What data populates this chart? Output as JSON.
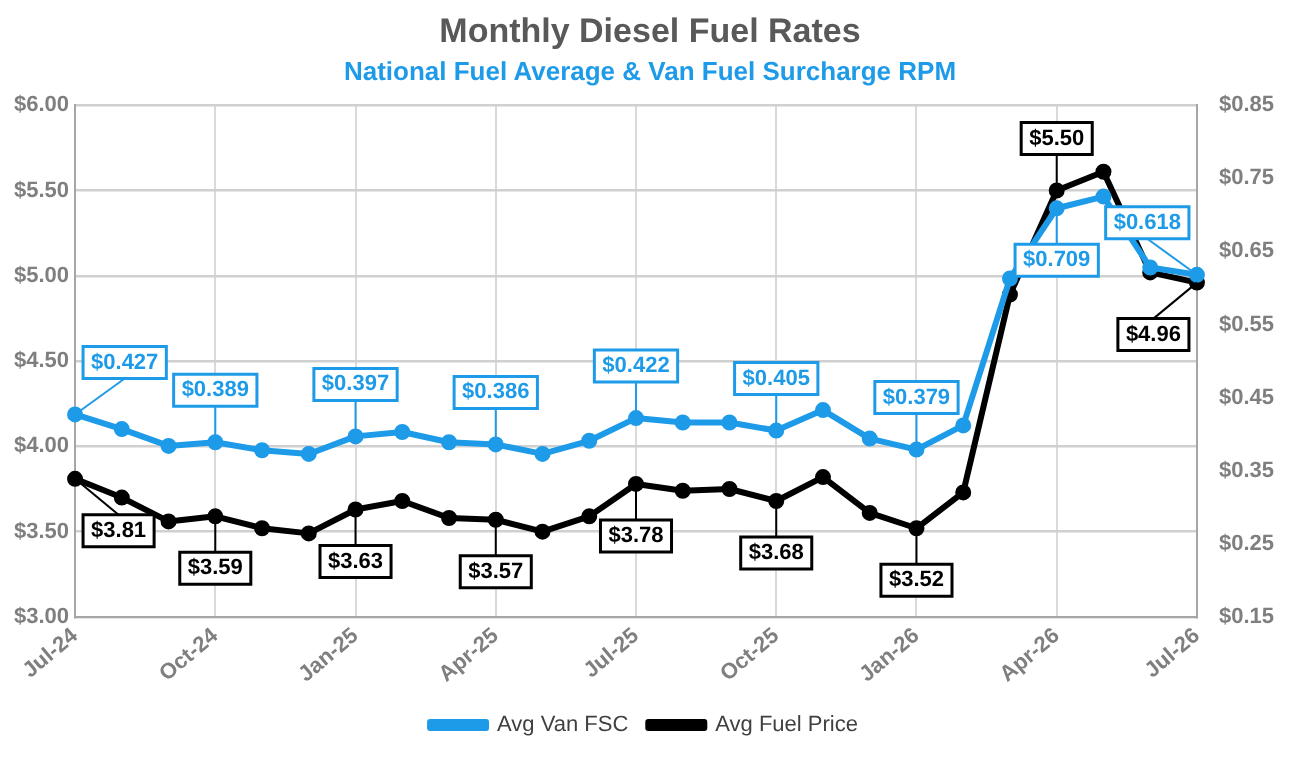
{
  "chart_data": {
    "type": "line",
    "title": "Monthly Diesel Fuel Rates",
    "subtitle": "National Fuel Average & Van Fuel Surcharge RPM",
    "categories": [
      "Jul-24",
      null,
      null,
      "Oct-24",
      null,
      null,
      "Jan-25",
      null,
      null,
      "Apr-25",
      null,
      null,
      "Jul-25",
      null,
      null,
      "Oct-25",
      null,
      null,
      "Jan-26",
      null,
      null,
      "Apr-26",
      null,
      null,
      "Jul-26"
    ],
    "series": [
      {
        "name": "Avg Fuel Price",
        "color": "#000000",
        "values": [
          3.81,
          3.7,
          3.56,
          3.59,
          3.52,
          3.49,
          3.63,
          3.68,
          3.58,
          3.57,
          3.5,
          3.59,
          3.78,
          3.74,
          3.75,
          3.68,
          3.82,
          3.61,
          3.52,
          3.73,
          4.89,
          5.5,
          5.61,
          5.02,
          4.96
        ],
        "value_labels": [
          "$3.81",
          null,
          null,
          "$3.59",
          null,
          null,
          "$3.63",
          null,
          null,
          "$3.57",
          null,
          null,
          "$3.78",
          null,
          null,
          "$3.68",
          null,
          null,
          "$3.52",
          null,
          null,
          "$5.50",
          null,
          null,
          "$4.96"
        ]
      },
      {
        "name": "Avg Van FSC",
        "color": "#1e9be8",
        "axis": "y2",
        "values": [
          0.427,
          0.407,
          0.384,
          0.389,
          0.378,
          0.373,
          0.397,
          0.403,
          0.389,
          0.386,
          0.373,
          0.391,
          0.422,
          0.416,
          0.416,
          0.405,
          0.433,
          0.394,
          0.379,
          0.412,
          0.613,
          0.709,
          0.725,
          0.628,
          0.618
        ],
        "value_labels": [
          "$0.427",
          null,
          null,
          "$0.389",
          null,
          null,
          "$0.397",
          null,
          null,
          "$0.386",
          null,
          null,
          "$0.422",
          null,
          null,
          "$0.405",
          null,
          null,
          "$0.379",
          null,
          null,
          "$0.709",
          null,
          null,
          "$0.618"
        ]
      }
    ],
    "ylim": [
      3,
      6
    ],
    "yticks": [
      {
        "value": 3,
        "label": "$3.00"
      },
      {
        "value": 3.5,
        "label": "$3.50"
      },
      {
        "value": 4,
        "label": "$4.00"
      },
      {
        "value": 4.5,
        "label": "$4.50"
      },
      {
        "value": 5,
        "label": "$5.00"
      },
      {
        "value": 5.5,
        "label": "$5.50"
      },
      {
        "value": 6,
        "label": "$6.00"
      }
    ],
    "y2lim": [
      0.15,
      0.85
    ],
    "y2ticks": [
      {
        "value": 0.15,
        "label": "$0.15"
      },
      {
        "value": 0.25,
        "label": "$0.25"
      },
      {
        "value": 0.35,
        "label": "$0.35"
      },
      {
        "value": 0.45,
        "label": "$0.45"
      },
      {
        "value": 0.55,
        "label": "$0.55"
      },
      {
        "value": 0.65,
        "label": "$0.65"
      },
      {
        "value": 0.75,
        "label": "$0.75"
      },
      {
        "value": 0.85,
        "label": "$0.85"
      }
    ],
    "grid": true,
    "legend": "bottom",
    "marker": "circle",
    "line_style": "solid"
  }
}
